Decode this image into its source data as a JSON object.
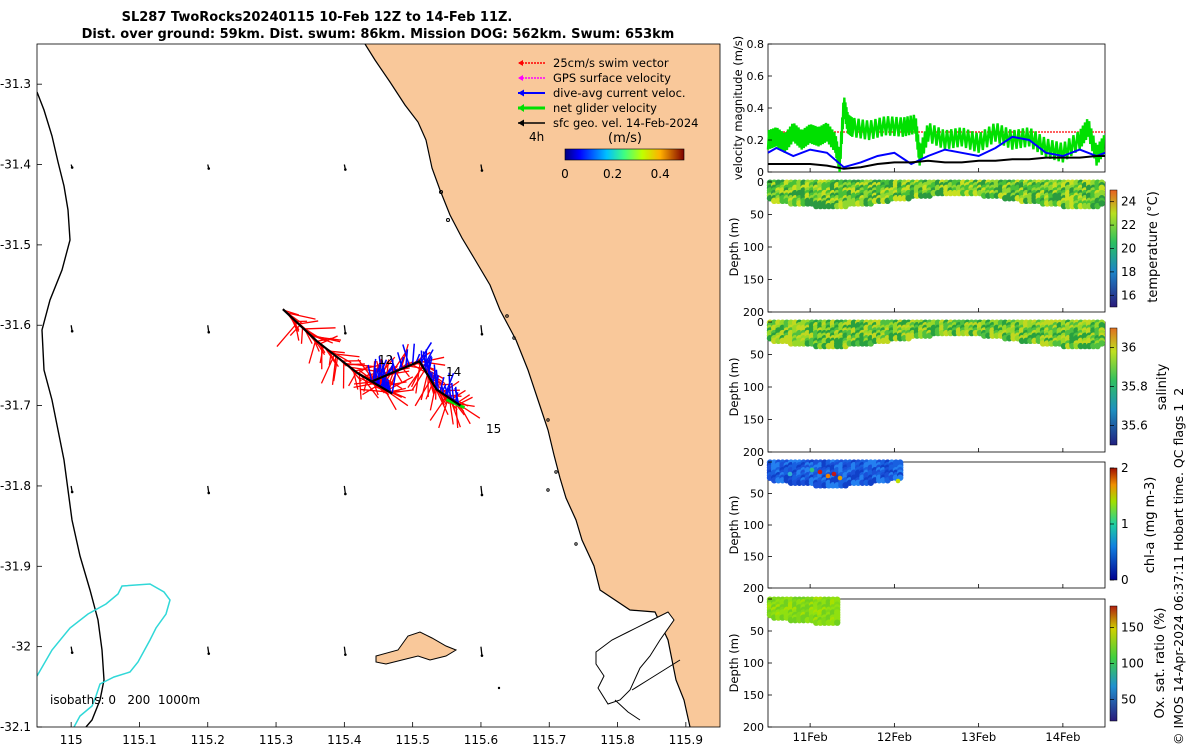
{
  "title": {
    "line1": "SL287 TwoRocks20240115 10-Feb 12Z to 14-Feb 11Z.",
    "line2": "Dist. over ground: 59km. Dist. swum: 86km. Mission DOG: 562km. Swum: 653km"
  },
  "colors": {
    "land": "#f9c89a",
    "swim": "#ff0000",
    "gps": "#ff00ff",
    "current": "#0000ff",
    "net": "#00e000",
    "geo": "#000000",
    "isobath_200": "#30d8d8"
  },
  "chart_data": [
    {
      "type": "map",
      "name": "track-map",
      "x_ticks": [
        "115",
        "115.1",
        "115.2",
        "115.3",
        "115.4",
        "115.5",
        "115.6",
        "115.7",
        "115.8",
        "115.9"
      ],
      "y_ticks": [
        "-31.3",
        "-31.4",
        "-31.5",
        "-31.6",
        "-31.7",
        "-31.8",
        "-31.9",
        "-32",
        "-32.1"
      ],
      "xlim": [
        114.95,
        115.95
      ],
      "ylim": [
        -32.1,
        -31.25
      ],
      "legend": {
        "placement": "top-right",
        "entries": [
          "25cm/s swim vector",
          "GPS surface velocity",
          "dive-avg current veloc.",
          "net glider velocity",
          "sfc geo. vel. 14-Feb-2024"
        ],
        "scale_label": "4h"
      },
      "colorbar": {
        "label": "(m/s)",
        "ticks": [
          "0",
          "0.2",
          "0.4"
        ],
        "range": [
          0,
          0.5
        ]
      },
      "day_labels": [
        "12",
        "14",
        "15"
      ],
      "isobath_label": "isobaths: 0   200  1000m",
      "track": [
        {
          "lon": 115.31,
          "lat": -31.58
        },
        {
          "lon": 115.36,
          "lat": -31.62
        },
        {
          "lon": 115.42,
          "lat": -31.66
        },
        {
          "lon": 115.47,
          "lat": -31.685
        },
        {
          "lon": 115.44,
          "lat": -31.67
        },
        {
          "lon": 115.51,
          "lat": -31.645
        },
        {
          "lon": 115.535,
          "lat": -31.68
        },
        {
          "lon": 115.57,
          "lat": -31.7
        }
      ]
    },
    {
      "type": "line",
      "name": "velocity-panel",
      "ylabel": "velocity magnitude (m/s)",
      "ylim": [
        0,
        0.8
      ],
      "y_ticks": [
        "0",
        "0.2",
        "0.4",
        "0.6",
        "0.8"
      ],
      "xlim": [
        10.5,
        14.5
      ],
      "swim_reference": 0.25,
      "series": [
        {
          "key": "net",
          "x": [
            10.5,
            10.6,
            10.7,
            10.8,
            10.9,
            11.0,
            11.1,
            11.2,
            11.3,
            11.35,
            11.4,
            11.45,
            11.5,
            11.7,
            11.9,
            12.1,
            12.25,
            12.3,
            12.4,
            12.6,
            12.8,
            13.0,
            13.2,
            13.4,
            13.6,
            13.8,
            14.0,
            14.2,
            14.3,
            14.4,
            14.5
          ],
          "y": [
            0.2,
            0.22,
            0.18,
            0.25,
            0.2,
            0.24,
            0.22,
            0.25,
            0.18,
            0.05,
            0.42,
            0.3,
            0.28,
            0.26,
            0.29,
            0.28,
            0.3,
            0.1,
            0.25,
            0.2,
            0.22,
            0.18,
            0.25,
            0.2,
            0.22,
            0.15,
            0.12,
            0.2,
            0.28,
            0.1,
            0.18
          ]
        },
        {
          "key": "current",
          "x": [
            10.5,
            10.6,
            10.8,
            11.0,
            11.2,
            11.4,
            11.6,
            11.8,
            12.0,
            12.2,
            12.4,
            12.6,
            12.8,
            13.0,
            13.2,
            13.4,
            13.6,
            13.8,
            14.0,
            14.2,
            14.4,
            14.5
          ],
          "y": [
            0.12,
            0.15,
            0.1,
            0.14,
            0.12,
            0.03,
            0.06,
            0.1,
            0.12,
            0.05,
            0.1,
            0.14,
            0.12,
            0.1,
            0.15,
            0.22,
            0.2,
            0.12,
            0.1,
            0.14,
            0.1,
            0.12
          ]
        },
        {
          "key": "geo",
          "x": [
            10.5,
            10.8,
            11.0,
            11.2,
            11.4,
            11.6,
            11.8,
            12.0,
            12.2,
            12.4,
            12.6,
            12.8,
            13.0,
            13.2,
            13.4,
            13.6,
            13.8,
            14.0,
            14.2,
            14.4,
            14.5
          ],
          "y": [
            0.05,
            0.05,
            0.05,
            0.04,
            0.02,
            0.03,
            0.05,
            0.06,
            0.06,
            0.07,
            0.06,
            0.06,
            0.07,
            0.07,
            0.08,
            0.08,
            0.09,
            0.09,
            0.09,
            0.1,
            0.1
          ]
        }
      ]
    },
    {
      "type": "heatmap",
      "name": "temperature-panel",
      "ylabel": "Depth (m)",
      "cbar_label": "temperature (°C)",
      "cbar_ticks": [
        "16",
        "18",
        "20",
        "22",
        "24"
      ],
      "cbar_range": [
        15,
        25
      ],
      "ylim": [
        200,
        0
      ],
      "y_ticks": [
        "0",
        "50",
        "100",
        "150",
        "200"
      ],
      "xlim": [
        10.5,
        14.5
      ],
      "data_extent": [
        10.5,
        14.5
      ],
      "max_depth": 38,
      "value": 20.5
    },
    {
      "type": "heatmap",
      "name": "salinity-panel",
      "ylabel": "Depth (m)",
      "cbar_label": "salinity",
      "cbar_ticks": [
        "35.6",
        "35.8",
        "36"
      ],
      "cbar_range": [
        35.5,
        36.1
      ],
      "ylim": [
        200,
        0
      ],
      "y_ticks": [
        "0",
        "50",
        "100",
        "150",
        "200"
      ],
      "xlim": [
        10.5,
        14.5
      ],
      "data_extent": [
        10.5,
        14.5
      ],
      "max_depth": 38,
      "value": 35.9
    },
    {
      "type": "heatmap",
      "name": "chla-panel",
      "ylabel": "Depth (m)",
      "cbar_label": "chl-a (mg m-3)",
      "cbar_ticks": [
        "0",
        "1",
        "2"
      ],
      "cbar_range": [
        0,
        2
      ],
      "ylim": [
        200,
        0
      ],
      "y_ticks": [
        "0",
        "50",
        "100",
        "150",
        "200"
      ],
      "xlim": [
        10.5,
        14.5
      ],
      "data_extent": [
        10.5,
        12.1
      ],
      "max_depth": 38,
      "value": 0.25
    },
    {
      "type": "heatmap",
      "name": "oxygen-panel",
      "ylabel": "Depth (m)",
      "cbar_label": "Ox. sat. ratio (%)",
      "cbar_ticks": [
        "50",
        "100",
        "150"
      ],
      "cbar_range": [
        20,
        180
      ],
      "ylim": [
        200,
        0
      ],
      "y_ticks": [
        "0",
        "50",
        "100",
        "150",
        "200"
      ],
      "xlim": [
        10.5,
        14.5
      ],
      "data_extent": [
        10.5,
        11.35
      ],
      "max_depth": 38,
      "value": 105
    }
  ],
  "time_axis": {
    "ticks": [
      {
        "x": 11,
        "label": "11Feb"
      },
      {
        "x": 12,
        "label": "12Feb"
      },
      {
        "x": 13,
        "label": "13Feb"
      },
      {
        "x": 14,
        "label": "14Feb"
      }
    ]
  },
  "credit": "© IMOS 14-Apr-2024 06:37:11 Hobart time. QC flags 1  2"
}
